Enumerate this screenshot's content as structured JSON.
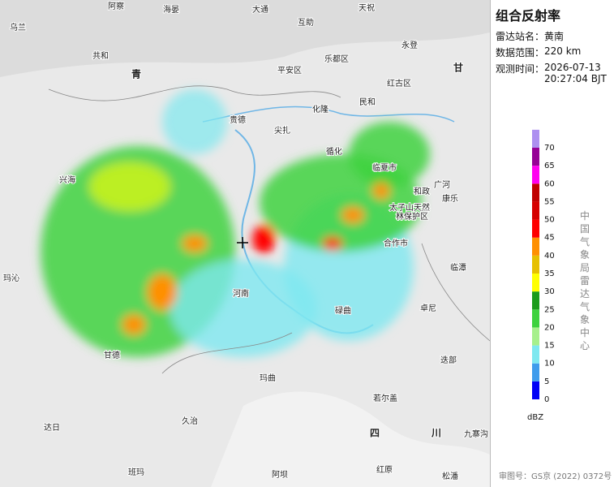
{
  "panel": {
    "title": "组合反射率",
    "fields": [
      {
        "label": "雷达站名：",
        "value": "黄南"
      },
      {
        "label": "数据范围：",
        "value": "220 km"
      },
      {
        "label": "观测时间：",
        "value": "2026-07-13 20:27:04 BJT"
      }
    ],
    "source": "中国气象局雷达气象中心",
    "approval": "审图号：GS京 (2022) 0372号"
  },
  "legend": {
    "unit": "dBZ",
    "ticks": [
      0,
      5,
      10,
      15,
      20,
      25,
      30,
      35,
      40,
      45,
      50,
      55,
      60,
      65,
      70
    ],
    "colors": [
      "#0000f6",
      "#3f9cec",
      "#7ee8f0",
      "#a6f08c",
      "#3ed23e",
      "#1c9c1c",
      "#ffff00",
      "#e6c000",
      "#ff9000",
      "#ff0000",
      "#d60000",
      "#c00000",
      "#ff00f0",
      "#960096",
      "#ad90f0"
    ]
  },
  "map": {
    "places": [
      "阿察",
      "海晏",
      "大通",
      "天祝",
      "乌兰",
      "互助",
      "共和",
      "平安区",
      "乐都区",
      "永登",
      "青",
      "红古区",
      "甘",
      "化隆",
      "民和",
      "贵德",
      "尖扎",
      "循化",
      "临夏市",
      "兴海",
      "和政",
      "康乐",
      "广河",
      "玛沁",
      "太子山天然",
      "林保护区",
      "合作市",
      "临潭",
      "河南",
      "碌曲",
      "卓尼",
      "甘德",
      "玛曲",
      "迭部",
      "若尔盖",
      "达日",
      "久治",
      "四",
      "川",
      "九寨沟",
      "班玛",
      "阿坝",
      "红原",
      "松潘"
    ]
  }
}
